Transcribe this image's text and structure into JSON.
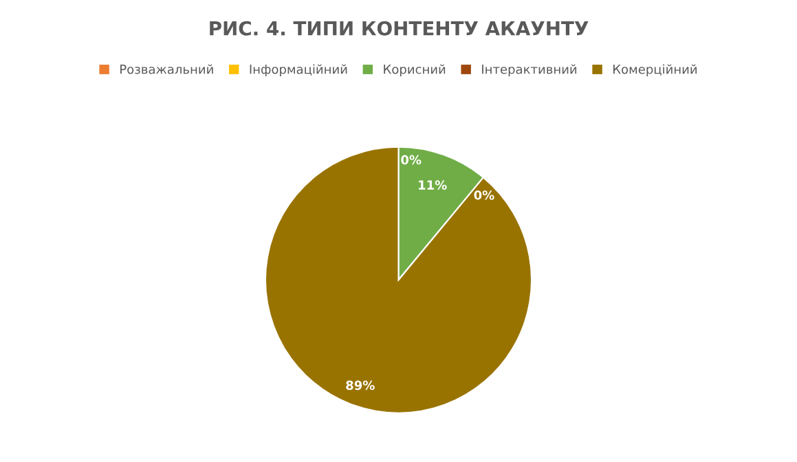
{
  "chart_data": {
    "type": "pie",
    "title": "РИС. 4. ТИПИ КОНТЕНТУ АКАУНТУ",
    "categories": [
      "Розважальний",
      "Інформаційний",
      "Корисний",
      "Інтерактивний",
      "Комерційний"
    ],
    "values": [
      0,
      0,
      11,
      0,
      89
    ],
    "colors": [
      "#ed7d31",
      "#ffc000",
      "#70ad47",
      "#9e480e",
      "#997300"
    ],
    "value_labels": [
      "0%",
      null,
      "11%",
      "0%",
      "89%"
    ],
    "legend": "top"
  }
}
